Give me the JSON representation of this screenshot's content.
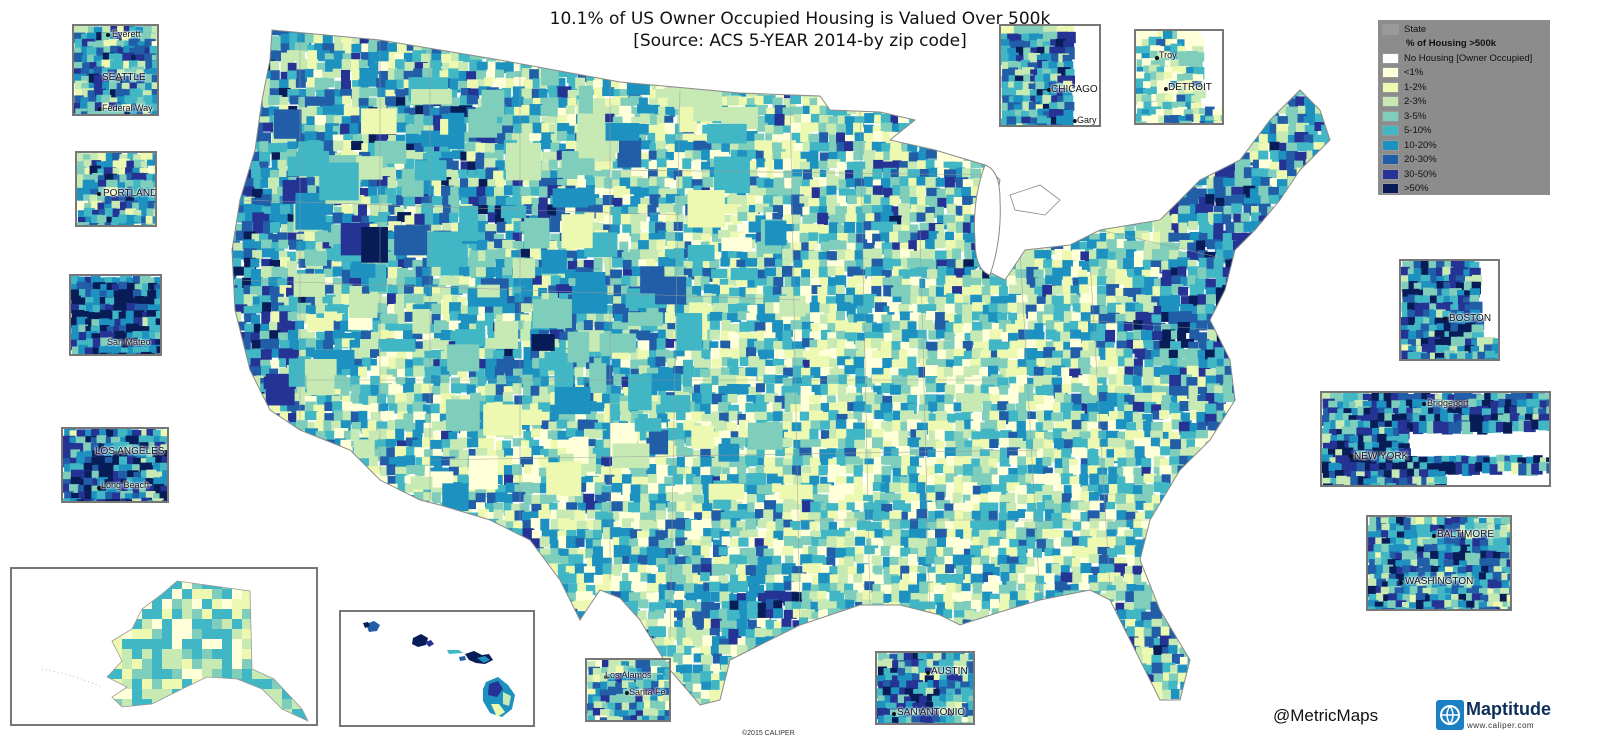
{
  "title": {
    "line1": "10.1% of US Owner Occupied Housing is Valued Over 500k",
    "line2": "[Source:  ACS 5-YEAR 2014-by zip code]"
  },
  "legend": {
    "state_label": "State",
    "header": "% of Housing >500k",
    "classes": [
      {
        "label": "No Housing [Owner Occupied]",
        "color": "#ffffff"
      },
      {
        "label": "<1%",
        "color": "#ffffd9"
      },
      {
        "label": "1-2%",
        "color": "#edf8b1"
      },
      {
        "label": "2-3%",
        "color": "#c7e9b4"
      },
      {
        "label": "3-5%",
        "color": "#7fcdbb"
      },
      {
        "label": "5-10%",
        "color": "#41b6c4"
      },
      {
        "label": "10-20%",
        "color": "#1d91c0"
      },
      {
        "label": "20-30%",
        "color": "#225ea8"
      },
      {
        "label": "30-50%",
        "color": "#253494"
      },
      {
        "label": ">50%",
        "color": "#081d58"
      }
    ],
    "state_color": "#9a9a9a",
    "panel_color": "#8c8c8c"
  },
  "insets": {
    "seattle": [
      "Everett",
      "SEATTLE",
      "Federal Way"
    ],
    "portland": [
      "PORTLAND"
    ],
    "sanfrancisco": [
      "San Mateo"
    ],
    "losangeles": [
      "LOS ANGELES",
      "Long Beach"
    ],
    "chicago": [
      "CHICAGO",
      "Gary"
    ],
    "detroit": [
      "Troy",
      "DETROIT"
    ],
    "boston": [
      "BOSTON"
    ],
    "newyork": [
      "Bridgeport",
      "NEW YORK"
    ],
    "baltimore": [
      "BALTIMORE",
      "WASHINGTON"
    ],
    "santafe": [
      "Los Alamos",
      "Santa Fe"
    ],
    "austin": [
      "AUSTIN",
      "SAN ANTONIO"
    ]
  },
  "footer": {
    "handle": "@MetricMaps",
    "logo_name": "Maptitude",
    "logo_url": "www.caliper.com",
    "copyright": "©2015 CALIPER"
  }
}
